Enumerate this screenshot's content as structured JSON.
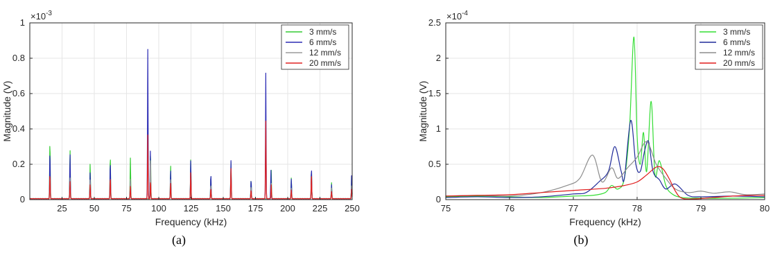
{
  "chart_data": [
    {
      "type": "line",
      "panel": "a",
      "caption": "(a)",
      "xlabel": "Frequency (kHz)",
      "ylabel": "Magnitude (V)",
      "exponent": "×10",
      "exponent_power": "-3",
      "xlim": [
        0,
        250
      ],
      "ylim": [
        0,
        1
      ],
      "xticks": [
        25,
        50,
        75,
        100,
        125,
        150,
        175,
        200,
        225,
        250
      ],
      "yticks": [
        0,
        0.2,
        0.4,
        0.6,
        0.8,
        1
      ],
      "ytick_labels": [
        "0",
        "0.2",
        "0.4",
        "0.6",
        "0.8",
        "1"
      ],
      "grid": true,
      "legend_position": "top-right",
      "series": [
        {
          "name": "3 mm/s",
          "color": "#33cc33",
          "peaks": [
            [
              15.6,
              0.33
            ],
            [
              31.2,
              0.28
            ],
            [
              46.8,
              0.2
            ],
            [
              62.4,
              0.245
            ],
            [
              78.0,
              0.23
            ],
            [
              93.6,
              0.27
            ],
            [
              109.2,
              0.19
            ],
            [
              124.8,
              0.225
            ],
            [
              140.4,
              0.14
            ],
            [
              156.0,
              0.205
            ],
            [
              171.6,
              0.11
            ],
            [
              187.2,
              0.165
            ],
            [
              202.8,
              0.12
            ],
            [
              218.4,
              0.17
            ],
            [
              234.0,
              0.09
            ],
            [
              249.6,
              0.14
            ]
          ]
        },
        {
          "name": "6 mm/s",
          "color": "#2b2bb4",
          "peaks": [
            [
              15.6,
              0.27
            ],
            [
              31.2,
              0.255
            ],
            [
              46.8,
              0.15
            ],
            [
              62.4,
              0.21
            ],
            [
              78.0,
              0.1
            ],
            [
              91.5,
              0.845
            ],
            [
              93.5,
              0.27
            ],
            [
              109.2,
              0.16
            ],
            [
              124.8,
              0.22
            ],
            [
              140.4,
              0.14
            ],
            [
              156.0,
              0.215
            ],
            [
              171.6,
              0.11
            ],
            [
              183.0,
              0.71
            ],
            [
              187.0,
              0.16
            ],
            [
              202.8,
              0.115
            ],
            [
              218.4,
              0.175
            ],
            [
              234.0,
              0.08
            ],
            [
              249.6,
              0.145
            ]
          ]
        },
        {
          "name": "12 mm/s",
          "color": "#9a9a9a",
          "peaks": [
            [
              15.6,
              0.13
            ],
            [
              31.2,
              0.12
            ],
            [
              46.8,
              0.11
            ],
            [
              62.4,
              0.12
            ],
            [
              78.0,
              0.11
            ],
            [
              93.6,
              0.24
            ],
            [
              109.2,
              0.11
            ],
            [
              124.8,
              0.12
            ],
            [
              140.4,
              0.08
            ],
            [
              156.0,
              0.15
            ],
            [
              171.6,
              0.07
            ],
            [
              187.2,
              0.09
            ],
            [
              202.8,
              0.06
            ],
            [
              218.4,
              0.1
            ],
            [
              234.0,
              0.06
            ],
            [
              249.6,
              0.08
            ]
          ]
        },
        {
          "name": "20 mm/s",
          "color": "#e02020",
          "peaks": [
            [
              15.6,
              0.14
            ],
            [
              31.2,
              0.1
            ],
            [
              46.8,
              0.08
            ],
            [
              62.4,
              0.12
            ],
            [
              78.0,
              0.07
            ],
            [
              91.5,
              0.36
            ],
            [
              93.6,
              0.1
            ],
            [
              109.2,
              0.09
            ],
            [
              124.8,
              0.15
            ],
            [
              140.4,
              0.06
            ],
            [
              156.0,
              0.17
            ],
            [
              171.6,
              0.05
            ],
            [
              183.0,
              0.44
            ],
            [
              187.2,
              0.08
            ],
            [
              202.8,
              0.05
            ],
            [
              218.4,
              0.14
            ],
            [
              234.0,
              0.04
            ],
            [
              249.6,
              0.06
            ]
          ]
        }
      ]
    },
    {
      "type": "line",
      "panel": "b",
      "caption": "(b)",
      "xlabel": "Frequency (kHz)",
      "ylabel": "Magnitude (V)",
      "exponent": "×10",
      "exponent_power": "-4",
      "xlim": [
        75,
        80
      ],
      "ylim": [
        0,
        2.5
      ],
      "xticks": [
        75,
        76,
        77,
        78,
        79,
        80
      ],
      "yticks": [
        0,
        0.5,
        1,
        1.5,
        2,
        2.5
      ],
      "ytick_labels": [
        "0",
        "0.5",
        "1",
        "1.5",
        "2",
        "2.5"
      ],
      "grid": true,
      "legend_position": "top-right",
      "series": [
        {
          "name": "3 mm/s",
          "color": "#33dd33",
          "points": [
            [
              75,
              0.04
            ],
            [
              75.5,
              0.05
            ],
            [
              76,
              0.04
            ],
            [
              76.5,
              0.03
            ],
            [
              77,
              0.05
            ],
            [
              77.3,
              0.06
            ],
            [
              77.5,
              0.1
            ],
            [
              77.6,
              0.2
            ],
            [
              77.7,
              0.15
            ],
            [
              77.8,
              0.3
            ],
            [
              77.88,
              1.0
            ],
            [
              77.95,
              2.3
            ],
            [
              78.0,
              0.9
            ],
            [
              78.05,
              0.5
            ],
            [
              78.1,
              0.95
            ],
            [
              78.15,
              0.4
            ],
            [
              78.22,
              1.39
            ],
            [
              78.28,
              0.35
            ],
            [
              78.35,
              0.55
            ],
            [
              78.45,
              0.2
            ],
            [
              78.55,
              0.08
            ],
            [
              78.7,
              0.03
            ],
            [
              79,
              0.02
            ],
            [
              79.5,
              0.02
            ],
            [
              80,
              0.03
            ]
          ]
        },
        {
          "name": "6 mm/s",
          "color": "#1f2a99",
          "points": [
            [
              75,
              0.03
            ],
            [
              75.5,
              0.04
            ],
            [
              76,
              0.03
            ],
            [
              76.5,
              0.04
            ],
            [
              77,
              0.08
            ],
            [
              77.2,
              0.1
            ],
            [
              77.4,
              0.25
            ],
            [
              77.55,
              0.4
            ],
            [
              77.65,
              0.75
            ],
            [
              77.75,
              0.4
            ],
            [
              77.8,
              0.3
            ],
            [
              77.9,
              1.12
            ],
            [
              77.98,
              0.5
            ],
            [
              78.05,
              0.4
            ],
            [
              78.12,
              0.7
            ],
            [
              78.18,
              0.82
            ],
            [
              78.25,
              0.4
            ],
            [
              78.35,
              0.28
            ],
            [
              78.45,
              0.15
            ],
            [
              78.6,
              0.22
            ],
            [
              78.8,
              0.06
            ],
            [
              79,
              0.04
            ],
            [
              79.5,
              0.05
            ],
            [
              80,
              0.04
            ]
          ]
        },
        {
          "name": "12 mm/s",
          "color": "#8c8c8c",
          "points": [
            [
              75,
              0.05
            ],
            [
              75.5,
              0.06
            ],
            [
              76,
              0.05
            ],
            [
              76.5,
              0.1
            ],
            [
              76.9,
              0.2
            ],
            [
              77.1,
              0.3
            ],
            [
              77.3,
              0.63
            ],
            [
              77.45,
              0.25
            ],
            [
              77.6,
              0.45
            ],
            [
              77.7,
              0.3
            ],
            [
              77.85,
              0.45
            ],
            [
              78.0,
              0.6
            ],
            [
              78.15,
              0.82
            ],
            [
              78.3,
              0.5
            ],
            [
              78.45,
              0.3
            ],
            [
              78.6,
              0.15
            ],
            [
              78.8,
              0.1
            ],
            [
              79,
              0.12
            ],
            [
              79.2,
              0.09
            ],
            [
              79.45,
              0.11
            ],
            [
              79.7,
              0.07
            ],
            [
              80,
              0.08
            ]
          ]
        },
        {
          "name": "20 mm/s",
          "color": "#e01b1b",
          "points": [
            [
              75,
              0.05
            ],
            [
              75.5,
              0.06
            ],
            [
              76,
              0.07
            ],
            [
              76.5,
              0.1
            ],
            [
              77,
              0.13
            ],
            [
              77.5,
              0.16
            ],
            [
              77.8,
              0.2
            ],
            [
              78.0,
              0.25
            ],
            [
              78.15,
              0.35
            ],
            [
              78.3,
              0.46
            ],
            [
              78.4,
              0.44
            ],
            [
              78.5,
              0.3
            ],
            [
              78.6,
              0.12
            ],
            [
              78.7,
              0.02
            ],
            [
              78.9,
              0.01
            ],
            [
              79.2,
              0.03
            ],
            [
              79.5,
              0.05
            ],
            [
              79.8,
              0.06
            ],
            [
              80,
              0.06
            ]
          ]
        }
      ]
    }
  ]
}
